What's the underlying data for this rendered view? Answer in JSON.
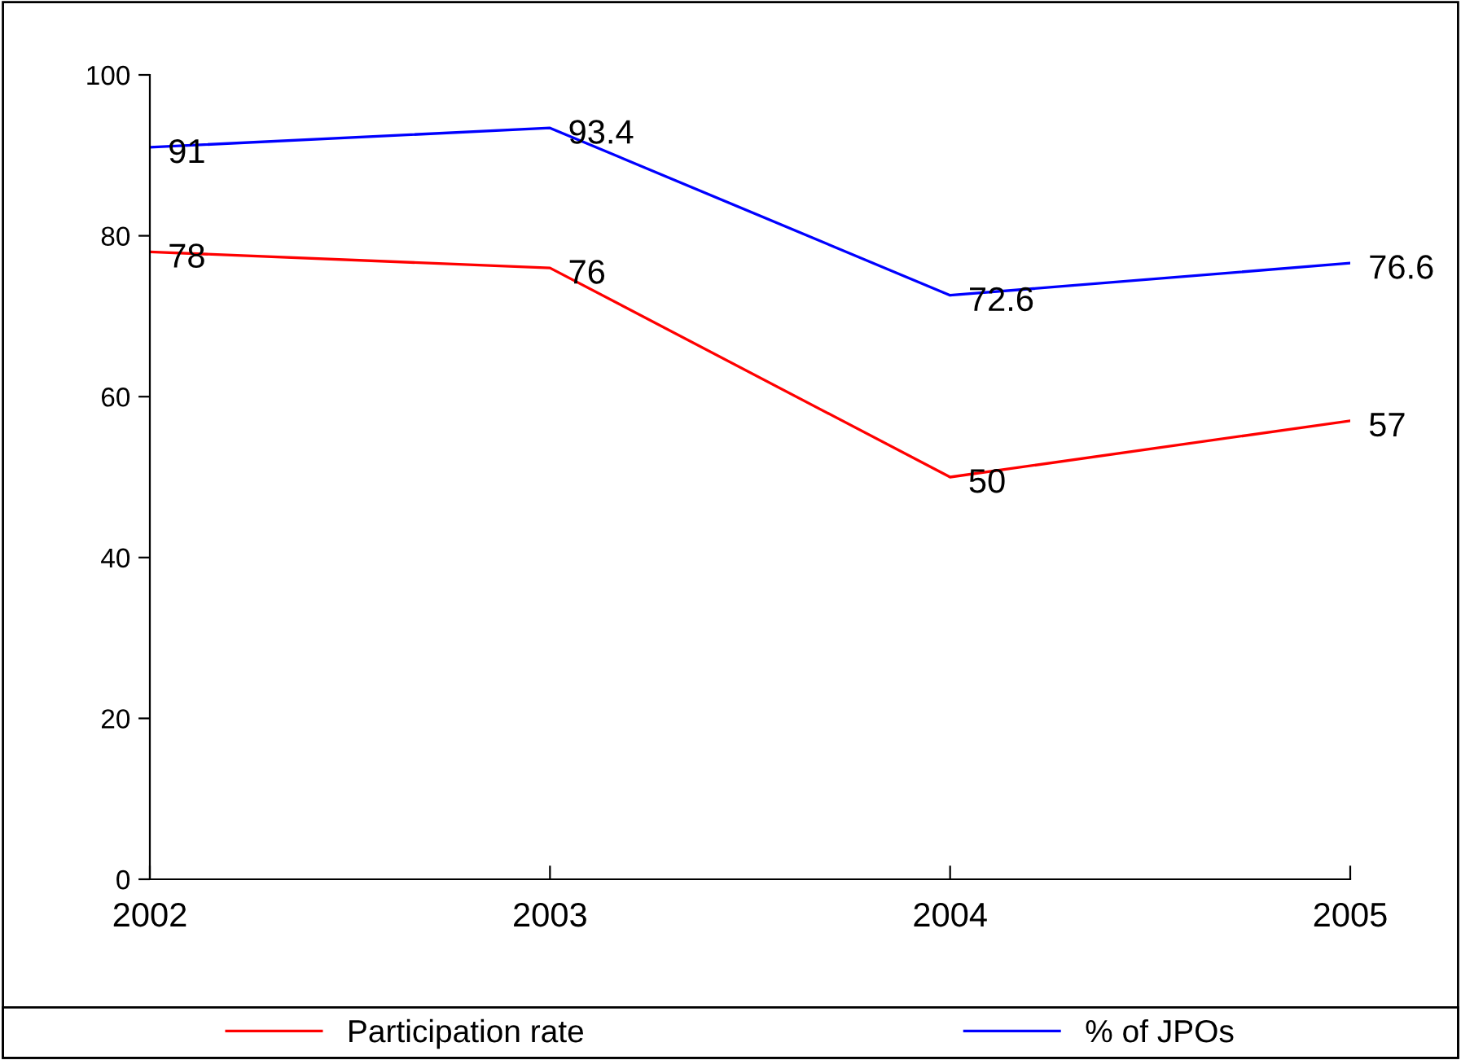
{
  "chart_data": {
    "type": "line",
    "categories": [
      "2002",
      "2003",
      "2004",
      "2005"
    ],
    "series": [
      {
        "name": "Participation rate",
        "color": "#ff0000",
        "values": [
          78,
          76,
          50,
          57
        ]
      },
      {
        "name": "% of JPOs",
        "color": "#0000ff",
        "values": [
          91,
          93.4,
          72.6,
          76.6
        ]
      }
    ],
    "ylim": [
      0,
      100
    ],
    "yticks": [
      0,
      20,
      40,
      60,
      80,
      100
    ],
    "grid": false,
    "legend": "bottom",
    "data_labels": true,
    "marker": "none",
    "line_style": "solid"
  }
}
